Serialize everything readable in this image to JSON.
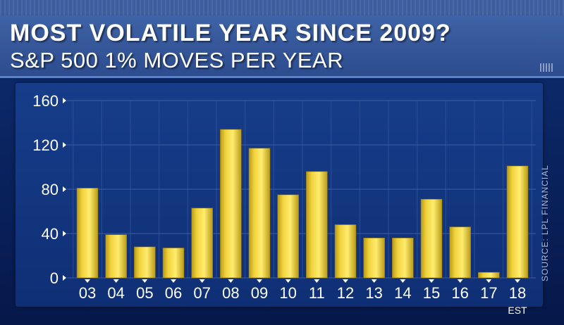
{
  "header": {
    "title": "MOST VOLATILE YEAR SINCE 2009?",
    "subtitle": "S&P 500 1% MOVES PER YEAR"
  },
  "source": "SOURCE: LPL FINANCIAL",
  "colors": {
    "bar": "#f0d23c",
    "bar_top": "#ffec6e",
    "bar_shadow": "#b99a17",
    "grid": "#3a5fa3",
    "text": "#ffffff"
  },
  "chart_data": {
    "type": "bar",
    "title": "S&P 500 1% MOVES PER YEAR",
    "categories": [
      "03",
      "04",
      "05",
      "06",
      "07",
      "08",
      "09",
      "10",
      "11",
      "12",
      "13",
      "14",
      "15",
      "16",
      "17",
      "18"
    ],
    "category_sublabels": {
      "18": "EST"
    },
    "values": [
      81,
      39,
      28,
      27,
      63,
      134,
      117,
      75,
      96,
      48,
      36,
      36,
      71,
      46,
      5,
      101
    ],
    "ylim": [
      0,
      160
    ],
    "yticks": [
      0,
      40,
      80,
      120,
      160
    ],
    "xlabel": "",
    "ylabel": "",
    "grid": true
  }
}
